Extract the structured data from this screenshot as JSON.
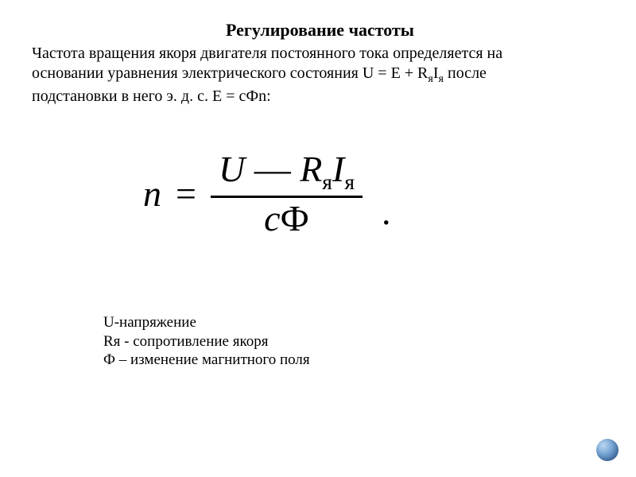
{
  "title": "Регулирование частоты",
  "paragraph": {
    "line1_a": "Частота вращения якоря двигателя постоянного тока определяется на",
    "line1_b": "основании уравнения электрического состояния U = E + R",
    "sub_ya1": "я",
    "line1_c": "I",
    "sub_ya2": "я",
    "line1_d": " после",
    "line2": "подстановки в него э. д. с. E = cФn:"
  },
  "formula": {
    "lhs": "n",
    "eq": "=",
    "num_U": "U",
    "num_dash": "—",
    "num_R": "R",
    "num_Rsub": "я",
    "num_I": "I",
    "num_Isub": "я",
    "den_c": "c",
    "den_Phi": "Ф",
    "dot": "."
  },
  "legend": {
    "l1": "U-напряжение",
    "l2": "Rя - сопротивление якоря",
    "l3": "Ф – изменение магнитного поля"
  },
  "colors": {
    "background": "#ffffff",
    "text": "#000000",
    "corner_dot_gradient": [
      "#bcd6ef",
      "#7ba9d6",
      "#4f7fb8",
      "#3a6599"
    ]
  }
}
